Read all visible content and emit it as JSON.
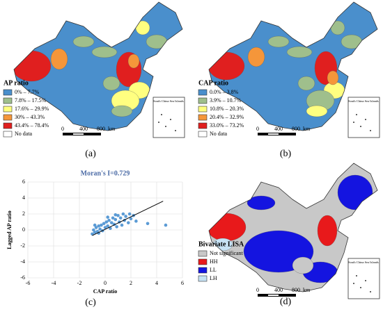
{
  "maps": [
    {
      "caption": "(a)",
      "legend_title": "AP ratio",
      "legend": [
        {
          "label": "0% – 7.7%",
          "color": "#4a8fcc"
        },
        {
          "label": "7.8% – 17.5%",
          "color": "#9fbf8c"
        },
        {
          "label": "17.6% – 29.9%",
          "color": "#ffff80"
        },
        {
          "label": "30% – 43.3%",
          "color": "#f5963a"
        },
        {
          "label": "43.4% – 78.4%",
          "color": "#e01f1f"
        },
        {
          "label": "No data",
          "color": "#ffffff"
        }
      ],
      "scale": [
        "0",
        "400",
        "800",
        "km"
      ],
      "inset": "South China Sea Islands"
    },
    {
      "caption": "(b)",
      "legend_title": "CAP ratio",
      "legend": [
        {
          "label": "0.0% – 3.8%",
          "color": "#4a8fcc"
        },
        {
          "label": "3.9% – 10.7%",
          "color": "#9fbf8c"
        },
        {
          "label": "10.8% – 20.3%",
          "color": "#ffff80"
        },
        {
          "label": "20.4% – 32.9%",
          "color": "#f5963a"
        },
        {
          "label": "33.0% – 73.2%",
          "color": "#e01f1f"
        },
        {
          "label": "No data",
          "color": "#ffffff"
        }
      ],
      "scale": [
        "0",
        "400",
        "800",
        "km"
      ],
      "inset": "South China Sea Islands"
    },
    {
      "caption": "(d)",
      "legend_title": "Bivariate LISA",
      "legend": [
        {
          "label": "Not significant",
          "color": "#c8c8c8"
        },
        {
          "label": "HH",
          "color": "#e8191b"
        },
        {
          "label": "LL",
          "color": "#1414e0"
        },
        {
          "label": "LH",
          "color": "#c6e2f4"
        }
      ],
      "scale": [
        "0",
        "400",
        "800",
        "km"
      ],
      "inset": "South China Sea Islands"
    }
  ],
  "chart_data": {
    "type": "scatter",
    "caption": "(c)",
    "title": "Moran's I=0.729",
    "x_label": "CAP ratio",
    "y_label": "Lagged AP ratio",
    "xlim": [
      -6,
      6
    ],
    "ylim": [
      -6,
      6
    ],
    "xticks": [
      -6,
      -4,
      -2,
      0,
      2,
      4,
      6
    ],
    "yticks": [
      -6,
      -4,
      -2,
      0,
      2,
      4,
      6
    ],
    "grid": true,
    "color": "#5b9bd5",
    "line_color": "#000000",
    "x": [
      -1,
      -0.9,
      -0.8,
      -0.7,
      -0.6,
      -0.5,
      -0.4,
      -0.3,
      -0.2,
      -0.1,
      0,
      0.1,
      0.2,
      0.3,
      0.4,
      0.5,
      0.6,
      0.7,
      0.8,
      0.9,
      1,
      1.1,
      1.2,
      1.3,
      1.4,
      1.5,
      1.6,
      1.8,
      1.9,
      2,
      2.2,
      2.4,
      -0.8,
      -0.5,
      0.2,
      0.8,
      3.3,
      4.7
    ],
    "y": [
      -0.5,
      0,
      -0.3,
      0.3,
      -0.2,
      0.5,
      0.1,
      0.6,
      -0.1,
      0.8,
      0.3,
      1,
      0.5,
      1.2,
      0.2,
      0.9,
      1.5,
      0.7,
      1.3,
      0.4,
      1.8,
      1,
      1.5,
      0.6,
      2,
      1.2,
      1.7,
      0.9,
      2,
      1.4,
      1.8,
      1.1,
      0.6,
      -0.4,
      1.6,
      1.9,
      0.8,
      0.6
    ],
    "trendline": {
      "x": [
        -1,
        4.5
      ],
      "y": [
        -0.7,
        3.6
      ]
    }
  }
}
